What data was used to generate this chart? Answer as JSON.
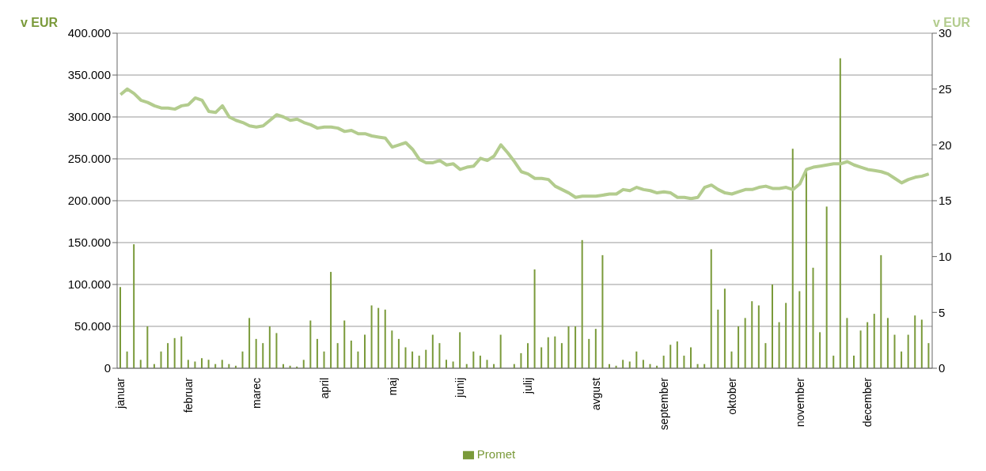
{
  "chart_data": {
    "type": "bar",
    "ylabel": "v EUR",
    "y2label": "v EUR",
    "categories": [
      "januar",
      null,
      null,
      null,
      null,
      null,
      null,
      null,
      null,
      null,
      "februar",
      null,
      null,
      null,
      null,
      null,
      null,
      null,
      null,
      null,
      "marec",
      null,
      null,
      null,
      null,
      null,
      null,
      null,
      null,
      null,
      "april",
      null,
      null,
      null,
      null,
      null,
      null,
      null,
      null,
      null,
      "maj",
      null,
      null,
      null,
      null,
      null,
      null,
      null,
      null,
      null,
      "junij",
      null,
      null,
      null,
      null,
      null,
      null,
      null,
      null,
      null,
      "julij",
      null,
      null,
      null,
      null,
      null,
      null,
      null,
      null,
      null,
      "avgust",
      null,
      null,
      null,
      null,
      null,
      null,
      null,
      null,
      null,
      "september",
      null,
      null,
      null,
      null,
      null,
      null,
      null,
      null,
      null,
      "oktober",
      null,
      null,
      null,
      null,
      null,
      null,
      null,
      null,
      null,
      "november",
      null,
      null,
      null,
      null,
      null,
      null,
      null,
      null,
      null,
      "december",
      null,
      null,
      null,
      null,
      null,
      null,
      null,
      null,
      null
    ],
    "series": [
      {
        "name": "Promet",
        "color": "#7a9a3a",
        "values": [
          97000,
          20000,
          148000,
          10000,
          50000,
          5000,
          20000,
          30000,
          36000,
          38000,
          10000,
          8000,
          12000,
          10000,
          5000,
          10000,
          5000,
          3000,
          20000,
          60000,
          35000,
          30000,
          50000,
          42000,
          5000,
          3000,
          2000,
          10000,
          57000,
          35000,
          20000,
          115000,
          30000,
          57000,
          33000,
          20000,
          40000,
          75000,
          72000,
          70000,
          45000,
          35000,
          25000,
          20000,
          15000,
          22000,
          40000,
          30000,
          10000,
          8000,
          43000,
          5000,
          20000,
          15000,
          10000,
          5000,
          40000,
          0,
          5000,
          18000,
          30000,
          118000,
          25000,
          37000,
          38000,
          30000,
          50000,
          50000,
          153000,
          35000,
          47000,
          135000,
          5000,
          3000,
          10000,
          8000,
          20000,
          10000,
          5000,
          3000,
          15000,
          28000,
          32000,
          15000,
          25000,
          5000,
          5000,
          142000,
          70000,
          95000,
          20000,
          50000,
          60000,
          80000,
          75000,
          30000,
          100000,
          55000,
          78000,
          262000,
          92000,
          235000,
          120000,
          43000,
          193000,
          15000,
          370000,
          60000,
          15000,
          45000,
          55000,
          65000,
          135000,
          60000,
          40000,
          20000,
          40000,
          63000,
          58000,
          30000
        ]
      },
      {
        "type": "line",
        "axis": "y2",
        "color": "#b3cc8e",
        "values": [
          24.5,
          25,
          24.6,
          24,
          23.8,
          23.5,
          23.3,
          23.3,
          23.2,
          23.5,
          23.6,
          24.2,
          24,
          23,
          22.9,
          23.5,
          22.5,
          22.2,
          22,
          21.7,
          21.6,
          21.7,
          22.2,
          22.7,
          22.5,
          22.2,
          22.3,
          22,
          21.8,
          21.5,
          21.6,
          21.6,
          21.5,
          21.2,
          21.3,
          21,
          21,
          20.8,
          20.7,
          20.6,
          19.8,
          20,
          20.2,
          19.6,
          18.7,
          18.4,
          18.4,
          18.6,
          18.2,
          18.3,
          17.8,
          18,
          18.1,
          18.8,
          18.6,
          19,
          20,
          19.3,
          18.5,
          17.6,
          17.4,
          17,
          17,
          16.9,
          16.3,
          16,
          15.7,
          15.3,
          15.4,
          15.4,
          15.4,
          15.5,
          15.6,
          15.6,
          16,
          15.9,
          16.2,
          16,
          15.9,
          15.7,
          15.8,
          15.7,
          15.3,
          15.3,
          15.2,
          15.3,
          16.2,
          16.4,
          16,
          15.7,
          15.6,
          15.8,
          16,
          16,
          16.2,
          16.3,
          16.1,
          16.1,
          16.2,
          16,
          16.5,
          17.8,
          18,
          18.1,
          18.2,
          18.3,
          18.3,
          18.5,
          18.2,
          18,
          17.8,
          17.7,
          17.6,
          17.4,
          17,
          16.6,
          16.9,
          17.1,
          17.2,
          17.4
        ]
      }
    ],
    "ylim": [
      0,
      400000
    ],
    "yticks": [
      {
        "value": 0,
        "label": "0"
      },
      {
        "value": 50000,
        "label": "50.000"
      },
      {
        "value": 100000,
        "label": "100.000"
      },
      {
        "value": 150000,
        "label": "150.000"
      },
      {
        "value": 200000,
        "label": "200.000"
      },
      {
        "value": 250000,
        "label": "250.000"
      },
      {
        "value": 300000,
        "label": "300.000"
      },
      {
        "value": 350000,
        "label": "350.000"
      },
      {
        "value": 400000,
        "label": "400.000"
      }
    ],
    "y2lim": [
      0,
      30
    ],
    "y2ticks": [
      0,
      5,
      10,
      15,
      20,
      25,
      30
    ],
    "grid": "y",
    "legend": "bottom"
  }
}
